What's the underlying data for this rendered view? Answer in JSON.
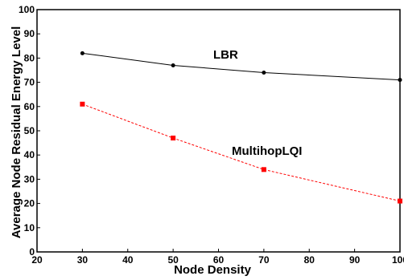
{
  "chart_data": {
    "type": "line",
    "xlabel": "Node Density",
    "ylabel": "Average Node Residual Energy Level",
    "xlim": [
      20,
      100
    ],
    "ylim": [
      0,
      100
    ],
    "xticks": [
      20,
      30,
      40,
      50,
      60,
      70,
      80,
      90,
      100
    ],
    "yticks": [
      0,
      10,
      20,
      30,
      40,
      50,
      60,
      70,
      80,
      90,
      100
    ],
    "grid": false,
    "series": [
      {
        "name": "LBR",
        "color": "#000000",
        "marker": "circle",
        "line": "solid",
        "x": [
          30,
          50,
          70,
          100
        ],
        "y": [
          82,
          77,
          74,
          71
        ]
      },
      {
        "name": "MultihopLQI",
        "color": "#ff0000",
        "marker": "square",
        "line": "dashed",
        "x": [
          30,
          50,
          70,
          100
        ],
        "y": [
          61,
          47,
          34,
          21
        ]
      }
    ]
  }
}
